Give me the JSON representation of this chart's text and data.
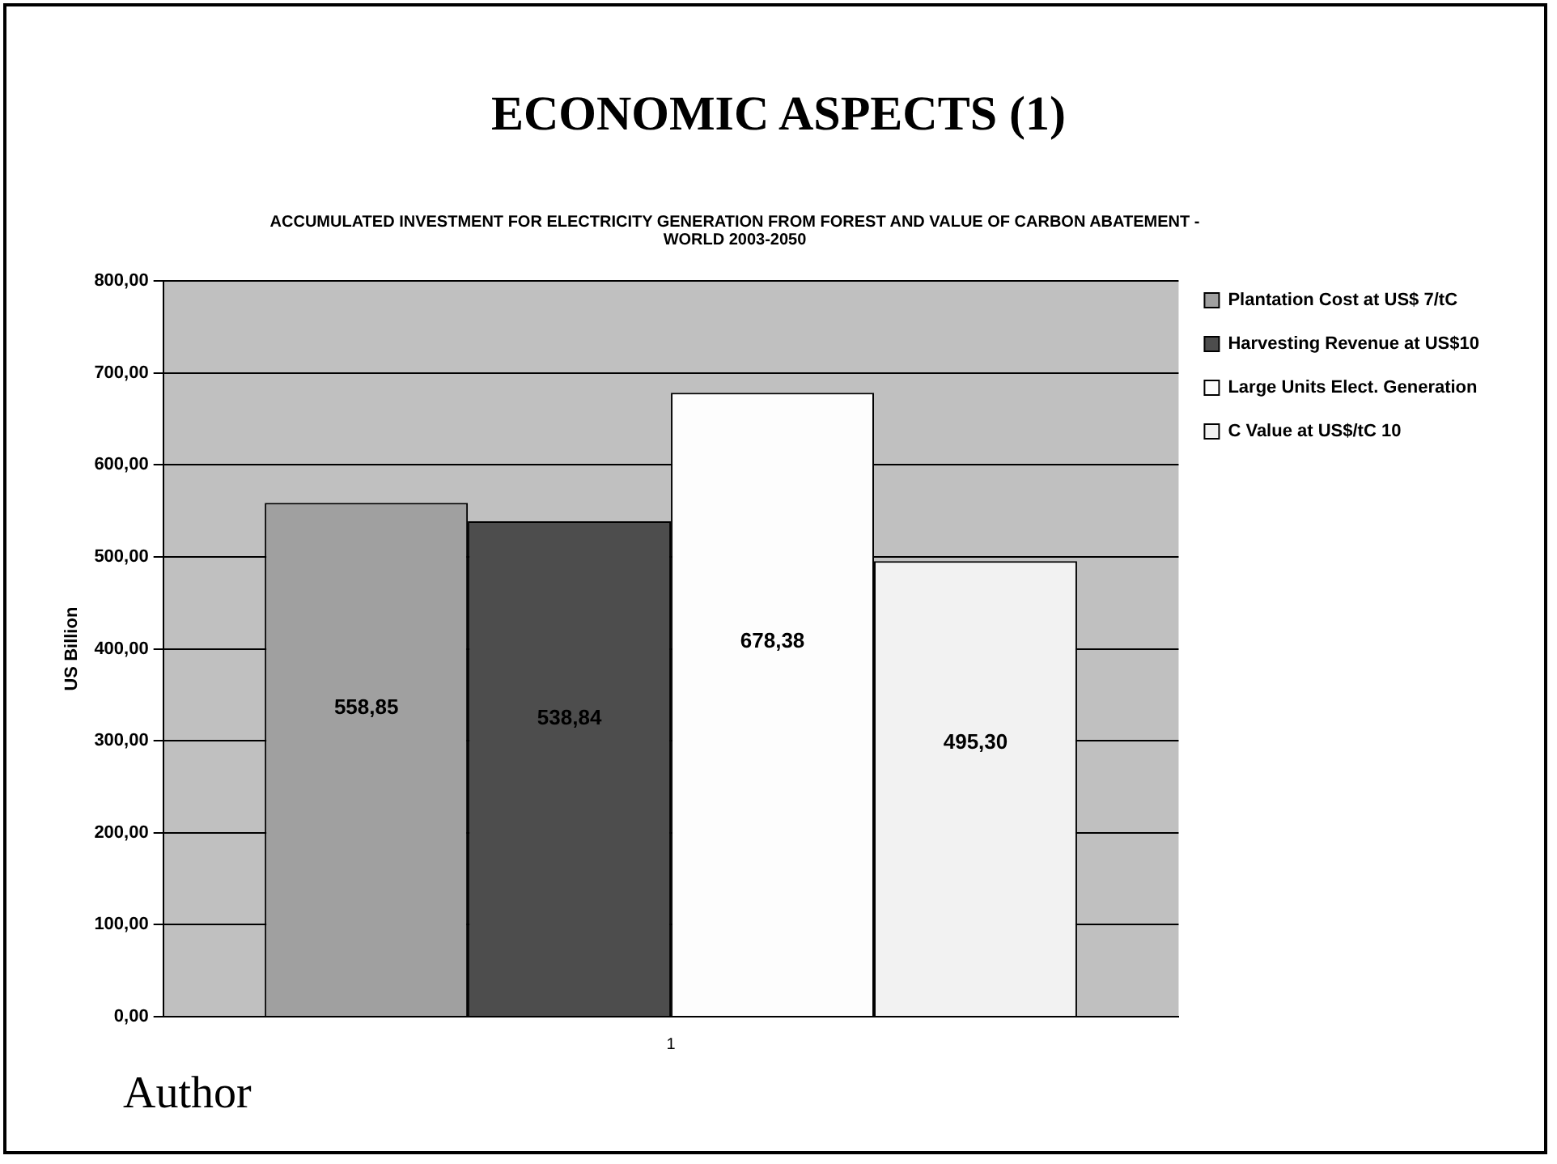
{
  "chart_data": {
    "type": "bar",
    "title": "ECONOMIC ASPECTS (1)",
    "subtitle": "ACCUMULATED INVESTMENT FOR ELECTRICITY GENERATION FROM FOREST AND VALUE OF CARBON ABATEMENT - WORLD 2003-2050",
    "ylabel": "US Billion",
    "categories": [
      "1"
    ],
    "series": [
      {
        "name": "Plantation Cost at US$ 7/tC",
        "color": "#a0a0a0",
        "values": [
          558.85
        ],
        "value_labels": [
          "558,85"
        ]
      },
      {
        "name": "Harvesting Revenue at US$10",
        "color": "#4d4d4d",
        "values": [
          538.84
        ],
        "value_labels": [
          "538,84"
        ]
      },
      {
        "name": "Large Units Elect. Generation",
        "color": "#fdfdfd",
        "values": [
          678.38
        ],
        "value_labels": [
          "678,38"
        ]
      },
      {
        "name": "C Value at US$/tC 10",
        "color": "#f2f2f2",
        "values": [
          495.3
        ],
        "value_labels": [
          "495,30"
        ]
      }
    ],
    "ylim": [
      0,
      800
    ],
    "yticks": [
      {
        "value": 0,
        "label": "0,00"
      },
      {
        "value": 100,
        "label": "100,00"
      },
      {
        "value": 200,
        "label": "200,00"
      },
      {
        "value": 300,
        "label": "300,00"
      },
      {
        "value": 400,
        "label": "400,00"
      },
      {
        "value": 500,
        "label": "500,00"
      },
      {
        "value": 600,
        "label": "600,00"
      },
      {
        "value": 700,
        "label": "700,00"
      },
      {
        "value": 800,
        "label": "800,00"
      }
    ],
    "grid": "y",
    "legend": "top right",
    "annotations": [
      "Author"
    ]
  }
}
